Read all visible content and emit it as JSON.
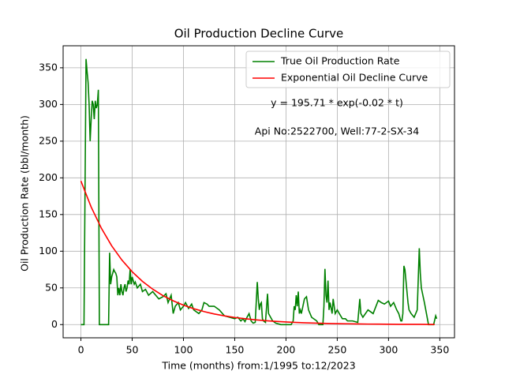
{
  "chart_data": {
    "type": "line",
    "title": "Oil Production Decline Curve",
    "x_label": "Time (months) from:1/1995 to:12/2023",
    "y_label": "Oil Production Rate (bbl/month)",
    "annotations": [
      "y = 195.71 * exp(-0.02 * t)",
      "Api No:2522700, Well:77-2-SX-34"
    ],
    "xlim": [
      -17.35,
      364.35
    ],
    "ylim": [
      -18,
      380
    ],
    "xticks": [
      0,
      50,
      100,
      150,
      200,
      250,
      300,
      350
    ],
    "yticks": [
      0,
      50,
      100,
      150,
      200,
      250,
      300,
      350
    ],
    "grid": true,
    "legend": "upper right",
    "series": [
      {
        "name": "True Oil Production Rate",
        "color": "#008000",
        "x": [
          0,
          1,
          2,
          3,
          4,
          5,
          6,
          7,
          8,
          9,
          10,
          11,
          12,
          13,
          14,
          15,
          16,
          17,
          18,
          27,
          28,
          29,
          30,
          31,
          32,
          33,
          34,
          35,
          36,
          37,
          38,
          39,
          40,
          41,
          42,
          43,
          44,
          45,
          46,
          47,
          48,
          49,
          50,
          51,
          52,
          53,
          55,
          58,
          60,
          63,
          66,
          70,
          73,
          76,
          80,
          83,
          85,
          88,
          90,
          92,
          95,
          97,
          100,
          102,
          105,
          108,
          110,
          115,
          118,
          120,
          123,
          125,
          130,
          135,
          140,
          145,
          150,
          153,
          156,
          158,
          160,
          162,
          164,
          166,
          168,
          170,
          172,
          173,
          174,
          175,
          176,
          177,
          178,
          180,
          182,
          183,
          185,
          187,
          190,
          195,
          205,
          207,
          208,
          209,
          210,
          211,
          212,
          213,
          214,
          215,
          218,
          220,
          222,
          225,
          230,
          232,
          236,
          237,
          238,
          239,
          240,
          241,
          242,
          243,
          245,
          246,
          247,
          248,
          250,
          252,
          255,
          258,
          260,
          265,
          270,
          272,
          273,
          275,
          280,
          285,
          290,
          293,
          296,
          300,
          302,
          305,
          308,
          310,
          312,
          313,
          314,
          315,
          316,
          317,
          318,
          319,
          320,
          322,
          325,
          328,
          330,
          331,
          332,
          335,
          337,
          339,
          344,
          346,
          347
        ],
        "values": [
          0,
          0,
          0,
          0,
          180,
          362,
          345,
          330,
          300,
          250,
          280,
          305,
          300,
          280,
          305,
          295,
          300,
          320,
          0,
          0,
          98,
          55,
          65,
          70,
          75,
          72,
          70,
          65,
          40,
          50,
          40,
          55,
          45,
          40,
          50,
          55,
          45,
          50,
          60,
          55,
          75,
          55,
          65,
          60,
          55,
          58,
          50,
          55,
          45,
          48,
          40,
          45,
          40,
          35,
          38,
          42,
          30,
          40,
          15,
          25,
          30,
          20,
          25,
          30,
          22,
          28,
          20,
          15,
          20,
          30,
          28,
          25,
          25,
          20,
          12,
          10,
          8,
          10,
          5,
          8,
          4,
          10,
          15,
          5,
          2,
          3,
          58,
          35,
          20,
          28,
          30,
          8,
          5,
          3,
          42,
          15,
          10,
          5,
          2,
          0,
          0,
          5,
          25,
          20,
          40,
          25,
          45,
          15,
          20,
          15,
          35,
          38,
          20,
          10,
          5,
          0,
          0,
          25,
          76,
          40,
          30,
          60,
          20,
          30,
          15,
          35,
          25,
          15,
          20,
          15,
          8,
          8,
          5,
          5,
          3,
          35,
          15,
          10,
          20,
          15,
          33,
          30,
          28,
          32,
          25,
          30,
          20,
          15,
          5,
          5,
          15,
          80,
          75,
          60,
          45,
          30,
          20,
          15,
          10,
          20,
          104,
          70,
          50,
          30,
          15,
          0,
          0,
          12,
          8
        ]
      },
      {
        "name": "Exponential Oil Decline Curve",
        "color": "#ff0000",
        "x": [
          0,
          10,
          20,
          30,
          40,
          50,
          60,
          70,
          80,
          90,
          100,
          110,
          120,
          130,
          140,
          150,
          160,
          170,
          180,
          190,
          200,
          210,
          220,
          230,
          240,
          250,
          260,
          270,
          280,
          290,
          300,
          310,
          320,
          330,
          340,
          345
        ],
        "values": [
          195.71,
          160.2,
          131.2,
          107.4,
          87.9,
          72.0,
          58.9,
          48.3,
          39.5,
          32.4,
          26.5,
          21.7,
          17.8,
          14.5,
          11.9,
          9.7,
          8.0,
          6.5,
          5.3,
          4.4,
          3.6,
          2.9,
          2.4,
          2.0,
          1.6,
          1.3,
          1.1,
          0.9,
          0.7,
          0.6,
          0.5,
          0.4,
          0.3,
          0.3,
          0.2,
          0.2
        ]
      }
    ]
  }
}
